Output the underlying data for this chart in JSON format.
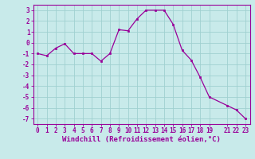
{
  "x": [
    0,
    1,
    2,
    3,
    4,
    5,
    6,
    7,
    8,
    9,
    10,
    11,
    12,
    13,
    14,
    15,
    16,
    17,
    18,
    19,
    21,
    22,
    23
  ],
  "y": [
    -1.0,
    -1.2,
    -0.5,
    -0.1,
    -1.0,
    -1.0,
    -1.0,
    -1.7,
    -1.0,
    1.2,
    1.1,
    2.2,
    3.0,
    3.0,
    3.0,
    1.7,
    -0.7,
    -1.6,
    -3.2,
    -5.0,
    -5.8,
    -6.2,
    -7.0
  ],
  "line_color": "#990099",
  "marker_color": "#990099",
  "bg_color": "#c8eaea",
  "grid_color": "#a0d0d0",
  "xlabel": "Windchill (Refroidissement éolien,°C)",
  "xlim": [
    -0.5,
    23.5
  ],
  "ylim": [
    -7.5,
    3.5
  ],
  "yticks": [
    -7,
    -6,
    -5,
    -4,
    -3,
    -2,
    -1,
    0,
    1,
    2,
    3
  ],
  "xticks": [
    0,
    1,
    2,
    3,
    4,
    5,
    6,
    7,
    8,
    9,
    10,
    11,
    12,
    13,
    14,
    15,
    16,
    17,
    18,
    19,
    21,
    22,
    23
  ],
  "tick_label_fontsize": 5.5,
  "xlabel_fontsize": 6.5,
  "marker_size": 2.0,
  "line_width": 0.9
}
